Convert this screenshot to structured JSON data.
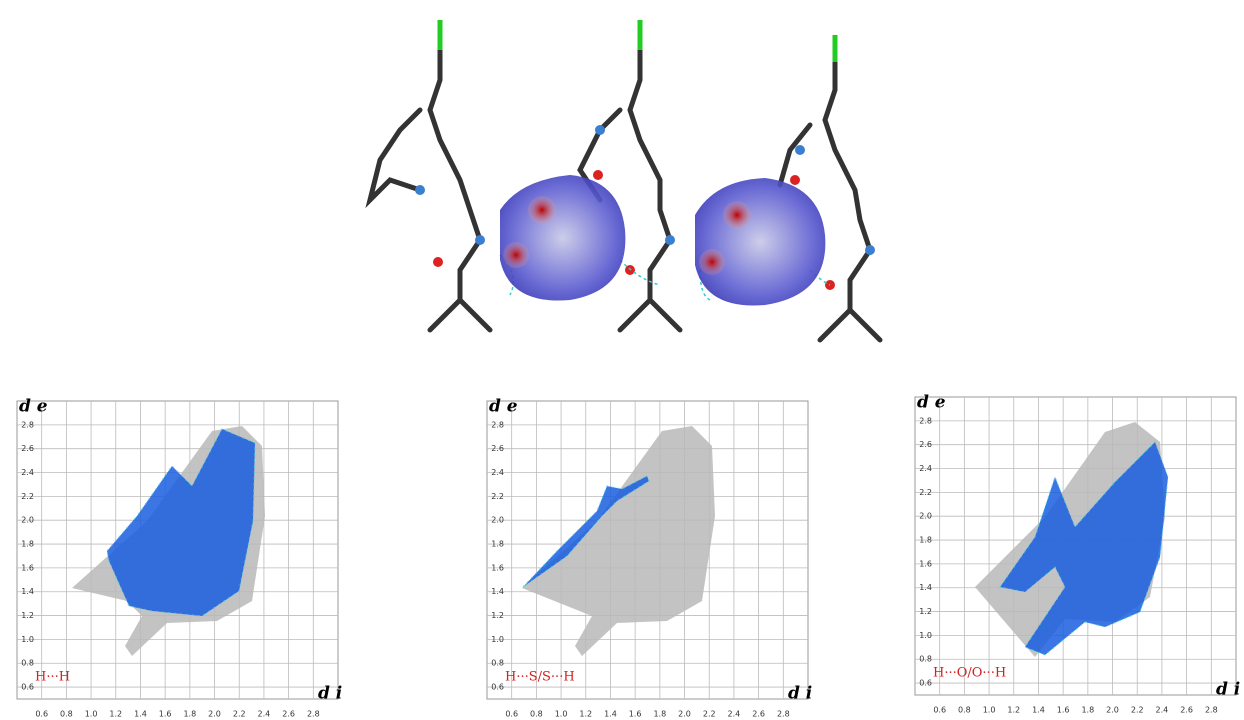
{
  "chart_data": [
    {
      "type": "fingerprint",
      "label": "H···H",
      "xlabel": "d i",
      "ylabel": "d e",
      "xlim": [
        0.4,
        3.0
      ],
      "ylim": [
        0.5,
        3.0
      ],
      "xticks": [
        0.6,
        0.8,
        {
          "value": 1,
          "label": "1.0"
        },
        1.2,
        1.4,
        1.6,
        1.8,
        {
          "value": 2,
          "label": "2.0"
        },
        2.2,
        2.4,
        2.6,
        2.8
      ],
      "yticks": [
        0.6,
        0.8,
        {
          "value": 1,
          "label": "1.0"
        },
        1.2,
        1.4,
        1.6,
        1.8,
        {
          "value": 2,
          "label": "2.0"
        },
        2.2,
        2.4,
        2.6,
        2.8
      ]
    },
    {
      "type": "fingerprint",
      "label": "H···S/S···H",
      "xlabel": "d i",
      "ylabel": "d e",
      "xlim": [
        0.4,
        3.0
      ],
      "ylim": [
        0.5,
        3.0
      ],
      "xticks": [
        0.6,
        0.8,
        {
          "value": 1,
          "label": "1.0"
        },
        1.2,
        1.4,
        1.6,
        1.8,
        {
          "value": 2,
          "label": "2.0"
        },
        2.2,
        2.4,
        2.6,
        2.8
      ],
      "yticks": [
        0.6,
        0.8,
        {
          "value": 1,
          "label": "1.0"
        },
        1.2,
        1.4,
        1.6,
        1.8,
        {
          "value": 2,
          "label": "2.0"
        },
        2.2,
        2.4,
        2.6,
        2.8
      ]
    },
    {
      "type": "fingerprint",
      "label": "H···O/O···H",
      "xlabel": "d i",
      "ylabel": "d e",
      "xlim": [
        0.4,
        3.0
      ],
      "ylim": [
        0.5,
        3.0
      ],
      "xticks": [
        0.6,
        0.8,
        {
          "value": 1,
          "label": "1.0"
        },
        1.2,
        1.4,
        1.6,
        1.8,
        {
          "value": 2,
          "label": "2.0"
        },
        2.2,
        2.4,
        2.6,
        2.8
      ],
      "yticks": [
        0.6,
        0.8,
        {
          "value": 1,
          "label": "1.0"
        },
        1.2,
        1.4,
        1.6,
        1.8,
        {
          "value": 2,
          "label": "2.0"
        },
        2.2,
        2.4,
        2.6,
        2.8
      ]
    }
  ]
}
